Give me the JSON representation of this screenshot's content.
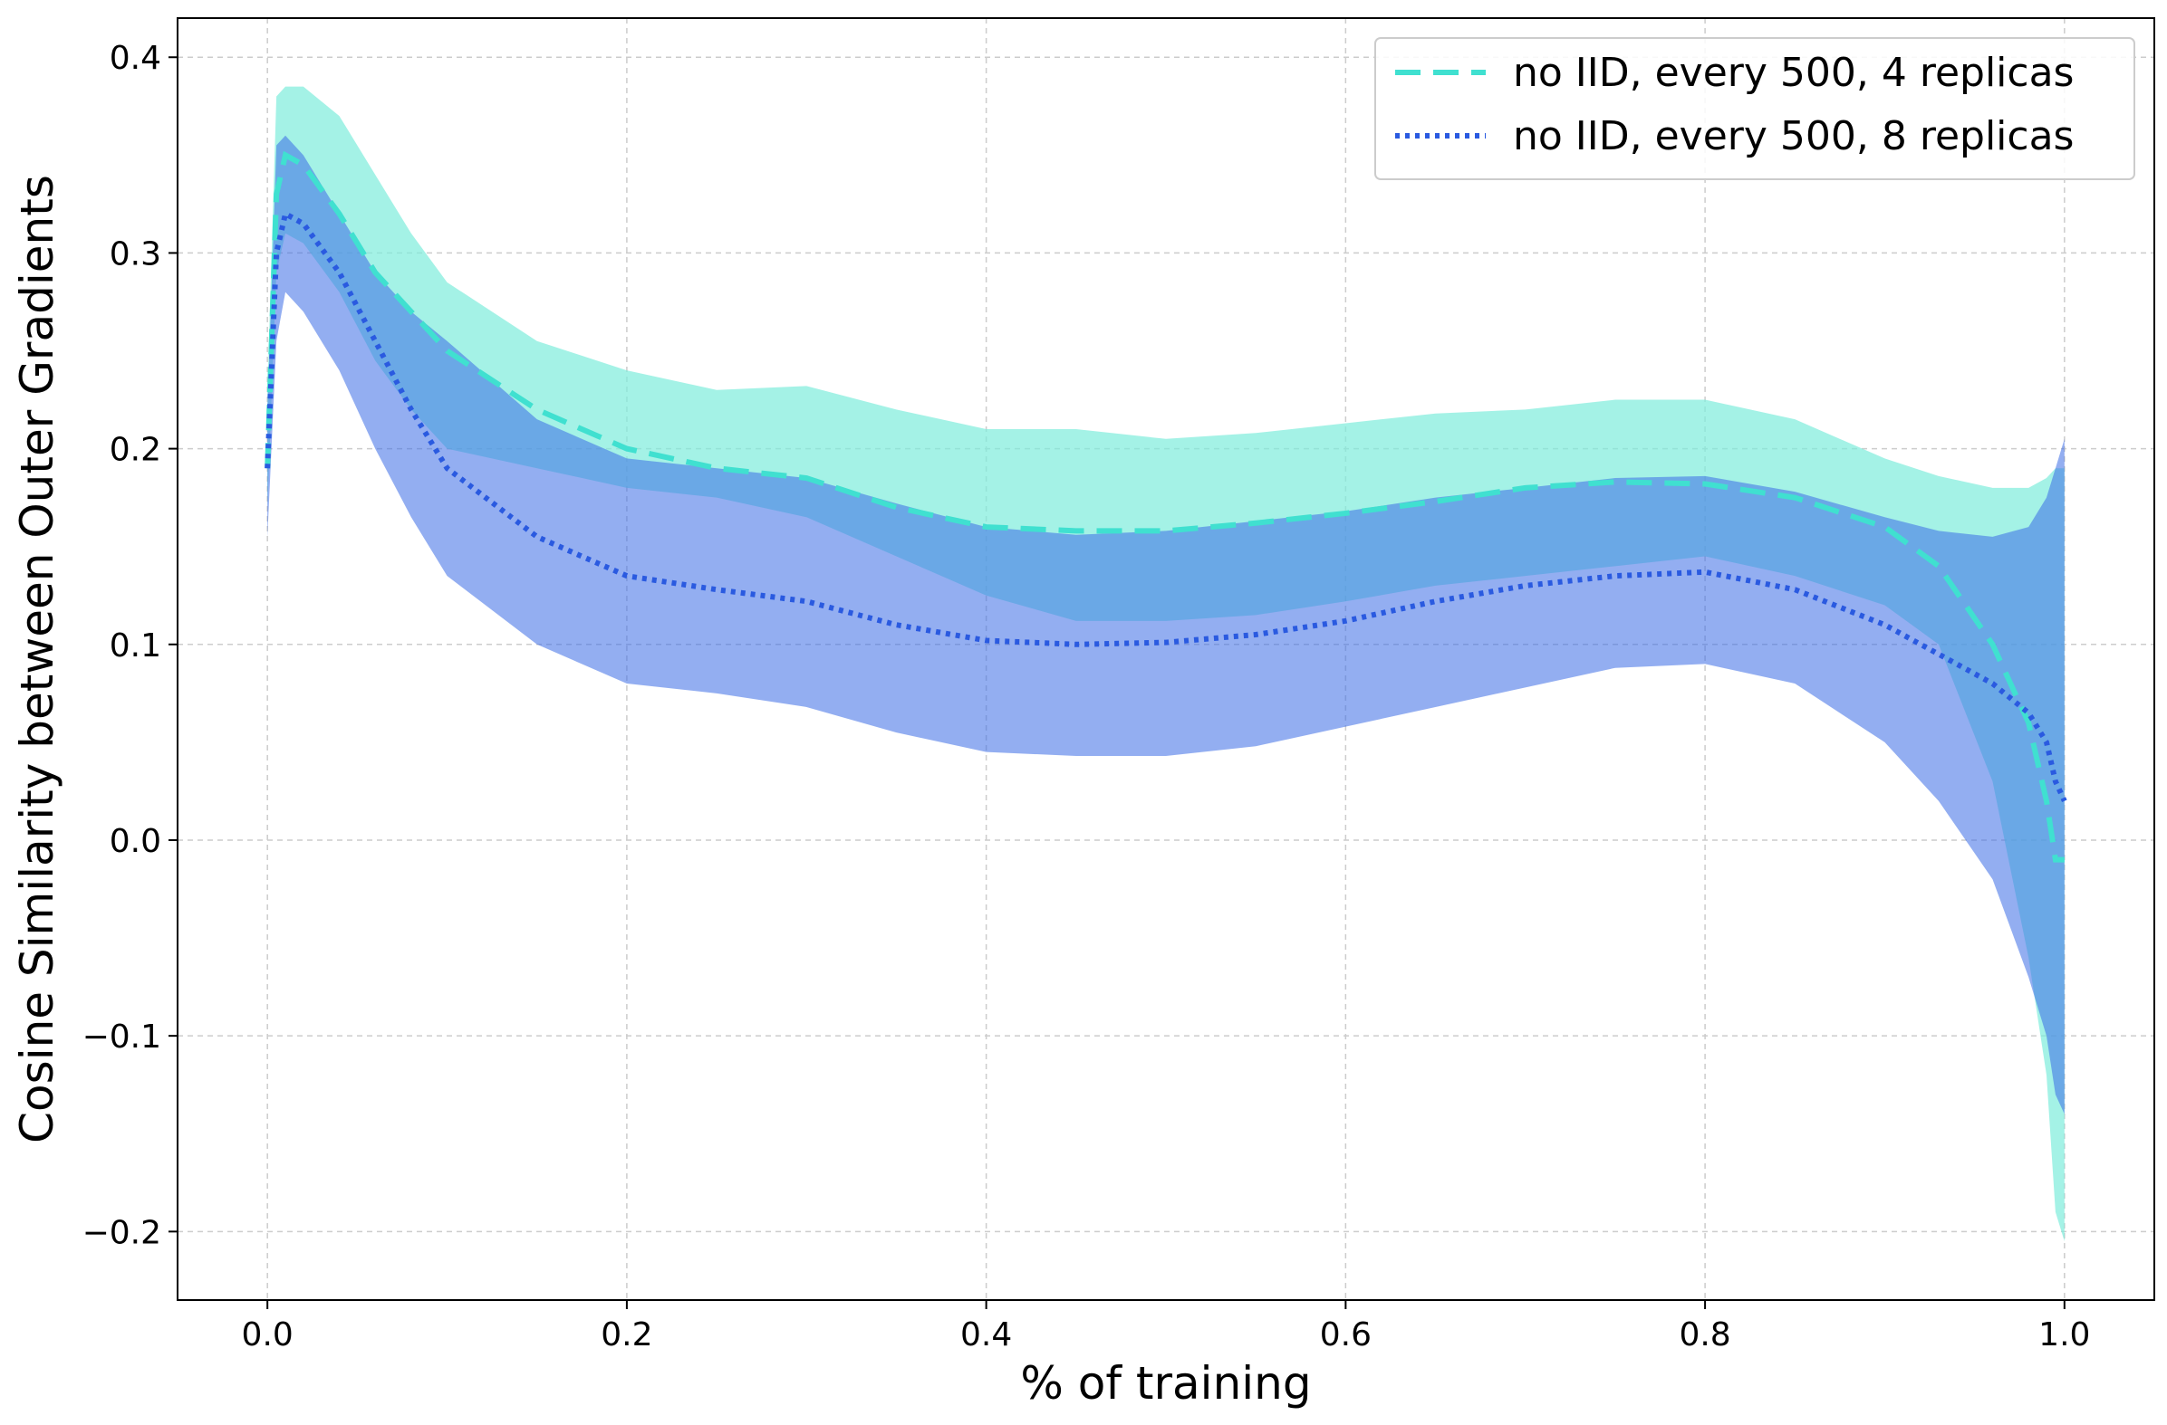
{
  "chart_data": {
    "type": "line",
    "xlabel": "% of training",
    "ylabel": "Cosine Similarity between Outer Gradients",
    "xlim": [
      -0.05,
      1.05
    ],
    "ylim": [
      -0.235,
      0.42
    ],
    "xticks": [
      0.0,
      0.2,
      0.4,
      0.6,
      0.8,
      1.0
    ],
    "xtick_labels": [
      "0.0",
      "0.2",
      "0.4",
      "0.6",
      "0.8",
      "1.0"
    ],
    "yticks": [
      -0.2,
      -0.1,
      0.0,
      0.1,
      0.2,
      0.3,
      0.4
    ],
    "ytick_labels": [
      "−0.2",
      "−0.1",
      "0.0",
      "0.1",
      "0.2",
      "0.3",
      "0.4"
    ],
    "grid": true,
    "legend_position": "top-right",
    "series": [
      {
        "name": "no IID, every 500, 4 replicas",
        "color": "#40e0d0",
        "line_style": "dashed",
        "shaded_band": true,
        "x": [
          0.0,
          0.005,
          0.01,
          0.02,
          0.04,
          0.06,
          0.08,
          0.1,
          0.15,
          0.2,
          0.25,
          0.3,
          0.35,
          0.4,
          0.45,
          0.5,
          0.55,
          0.6,
          0.65,
          0.7,
          0.75,
          0.8,
          0.85,
          0.9,
          0.93,
          0.96,
          0.98,
          0.99,
          0.995,
          1.0
        ],
        "y": [
          0.19,
          0.33,
          0.35,
          0.345,
          0.32,
          0.29,
          0.27,
          0.25,
          0.22,
          0.2,
          0.19,
          0.185,
          0.17,
          0.16,
          0.158,
          0.158,
          0.162,
          0.167,
          0.173,
          0.18,
          0.183,
          0.182,
          0.175,
          0.16,
          0.14,
          0.1,
          0.06,
          0.02,
          -0.01,
          -0.01
        ],
        "upper": [
          0.23,
          0.38,
          0.385,
          0.385,
          0.37,
          0.34,
          0.31,
          0.285,
          0.255,
          0.24,
          0.23,
          0.232,
          0.22,
          0.21,
          0.21,
          0.205,
          0.208,
          0.213,
          0.218,
          0.22,
          0.225,
          0.225,
          0.215,
          0.195,
          0.186,
          0.18,
          0.18,
          0.185,
          0.19,
          0.19
        ],
        "lower": [
          0.17,
          0.29,
          0.31,
          0.305,
          0.28,
          0.245,
          0.22,
          0.2,
          0.19,
          0.18,
          0.175,
          0.165,
          0.145,
          0.125,
          0.112,
          0.112,
          0.115,
          0.122,
          0.13,
          0.135,
          0.14,
          0.145,
          0.135,
          0.12,
          0.1,
          0.03,
          -0.06,
          -0.12,
          -0.19,
          -0.205
        ]
      },
      {
        "name": "no IID, every 500, 8 replicas",
        "color": "#2a5ae0",
        "line_style": "dotted",
        "shaded_band": true,
        "x": [
          0.0,
          0.005,
          0.01,
          0.02,
          0.04,
          0.06,
          0.08,
          0.1,
          0.15,
          0.2,
          0.25,
          0.3,
          0.35,
          0.4,
          0.45,
          0.5,
          0.55,
          0.6,
          0.65,
          0.7,
          0.75,
          0.8,
          0.85,
          0.9,
          0.93,
          0.96,
          0.98,
          0.99,
          0.995,
          1.0
        ],
        "y": [
          0.19,
          0.3,
          0.32,
          0.315,
          0.29,
          0.255,
          0.22,
          0.19,
          0.155,
          0.135,
          0.128,
          0.122,
          0.11,
          0.102,
          0.1,
          0.101,
          0.105,
          0.112,
          0.122,
          0.13,
          0.135,
          0.137,
          0.128,
          0.11,
          0.095,
          0.08,
          0.065,
          0.05,
          0.03,
          0.02
        ],
        "upper": [
          0.22,
          0.355,
          0.36,
          0.35,
          0.32,
          0.29,
          0.27,
          0.255,
          0.215,
          0.195,
          0.19,
          0.185,
          0.172,
          0.16,
          0.156,
          0.158,
          0.163,
          0.168,
          0.175,
          0.18,
          0.185,
          0.186,
          0.178,
          0.165,
          0.158,
          0.155,
          0.16,
          0.175,
          0.19,
          0.205
        ],
        "lower": [
          0.155,
          0.255,
          0.28,
          0.27,
          0.24,
          0.2,
          0.165,
          0.135,
          0.1,
          0.08,
          0.075,
          0.068,
          0.055,
          0.045,
          0.043,
          0.043,
          0.048,
          0.058,
          0.068,
          0.078,
          0.088,
          0.09,
          0.08,
          0.05,
          0.02,
          -0.02,
          -0.07,
          -0.1,
          -0.13,
          -0.14
        ]
      }
    ]
  }
}
